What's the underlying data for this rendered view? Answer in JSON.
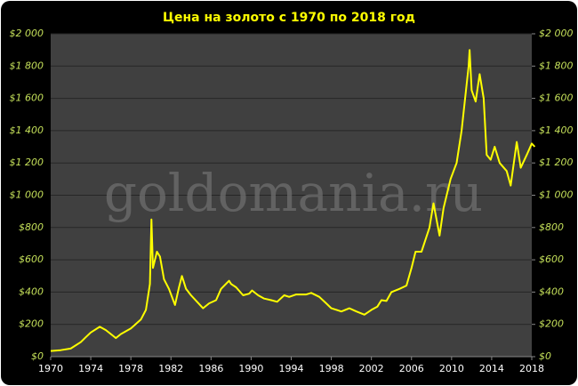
{
  "chart_data": {
    "type": "line",
    "title": "Цена на золото с 1970 по 2018 год",
    "watermark": "goldomania.ru",
    "color": "#ffff00",
    "x": [
      1970,
      1971,
      1972,
      1973,
      1973.5,
      1974,
      1974.9,
      1975.5,
      1976.5,
      1977,
      1978,
      1979,
      1979.5,
      1979.9,
      1980.05,
      1980.2,
      1980.6,
      1980.9,
      1981.3,
      1981.8,
      1982.4,
      1982.8,
      1983.1,
      1983.5,
      1984,
      1984.6,
      1985.2,
      1985.8,
      1986.5,
      1987,
      1987.8,
      1988,
      1988.5,
      1989.2,
      1989.8,
      1990.1,
      1990.7,
      1991.3,
      1992,
      1992.6,
      1993.3,
      1993.8,
      1994.5,
      1995.5,
      1996,
      1996.8,
      1997.5,
      1998,
      1999,
      1999.8,
      2000.5,
      2001.3,
      2002,
      2002.6,
      2003,
      2003.5,
      2004,
      2004.8,
      2005.5,
      2006,
      2006.4,
      2007,
      2007.8,
      2008.2,
      2008.8,
      2009.2,
      2009.9,
      2010.5,
      2011,
      2011.7,
      2011.8,
      2012,
      2012.4,
      2012.8,
      2013.2,
      2013.5,
      2013.9,
      2014.3,
      2014.8,
      2015.5,
      2015.9,
      2016.5,
      2016.9,
      2017.5,
      2018,
      2018.3
    ],
    "values": [
      35,
      40,
      50,
      90,
      120,
      150,
      185,
      165,
      115,
      140,
      175,
      230,
      290,
      450,
      850,
      550,
      650,
      620,
      480,
      420,
      320,
      430,
      500,
      420,
      380,
      340,
      300,
      330,
      350,
      420,
      470,
      450,
      430,
      380,
      390,
      410,
      380,
      360,
      350,
      340,
      380,
      370,
      385,
      385,
      395,
      370,
      330,
      300,
      280,
      300,
      280,
      260,
      290,
      310,
      350,
      345,
      400,
      420,
      440,
      550,
      650,
      650,
      800,
      950,
      750,
      920,
      1100,
      1200,
      1400,
      1800,
      1900,
      1650,
      1580,
      1750,
      1600,
      1250,
      1220,
      1300,
      1200,
      1150,
      1060,
      1330,
      1170,
      1250,
      1320,
      1300
    ],
    "xlim": [
      1970,
      2018
    ],
    "xticks": [
      1970,
      1974,
      1978,
      1982,
      1986,
      1990,
      1994,
      1998,
      2002,
      2006,
      2010,
      2014,
      2018
    ],
    "ylim": [
      0,
      2000
    ],
    "yticks": [
      {
        "value": 0,
        "label": "$0"
      },
      {
        "value": 200,
        "label": "$200"
      },
      {
        "value": 400,
        "label": "$400"
      },
      {
        "value": 600,
        "label": "$600"
      },
      {
        "value": 800,
        "label": "$800"
      },
      {
        "value": 1000,
        "label": "$1 000"
      },
      {
        "value": 1200,
        "label": "$1 200"
      },
      {
        "value": 1400,
        "label": "$1 400"
      },
      {
        "value": 1600,
        "label": "$1 600"
      },
      {
        "value": 1800,
        "label": "$1 800"
      },
      {
        "value": 2000,
        "label": "$2 000"
      }
    ],
    "y2lim": [
      0,
      2000
    ],
    "y2ticks": [
      {
        "value": 0,
        "label": "$0"
      },
      {
        "value": 200,
        "label": "$200"
      },
      {
        "value": 400,
        "label": "$400"
      },
      {
        "value": 600,
        "label": "$600"
      },
      {
        "value": 800,
        "label": "$800"
      },
      {
        "value": 1000,
        "label": "$1 000"
      },
      {
        "value": 1200,
        "label": "$1 200"
      },
      {
        "value": 1400,
        "label": "$1 400"
      },
      {
        "value": 1600,
        "label": "$1 600"
      },
      {
        "value": 1800,
        "label": "$1 800"
      },
      {
        "value": 2000,
        "label": "$2 000"
      }
    ],
    "grid": true
  }
}
